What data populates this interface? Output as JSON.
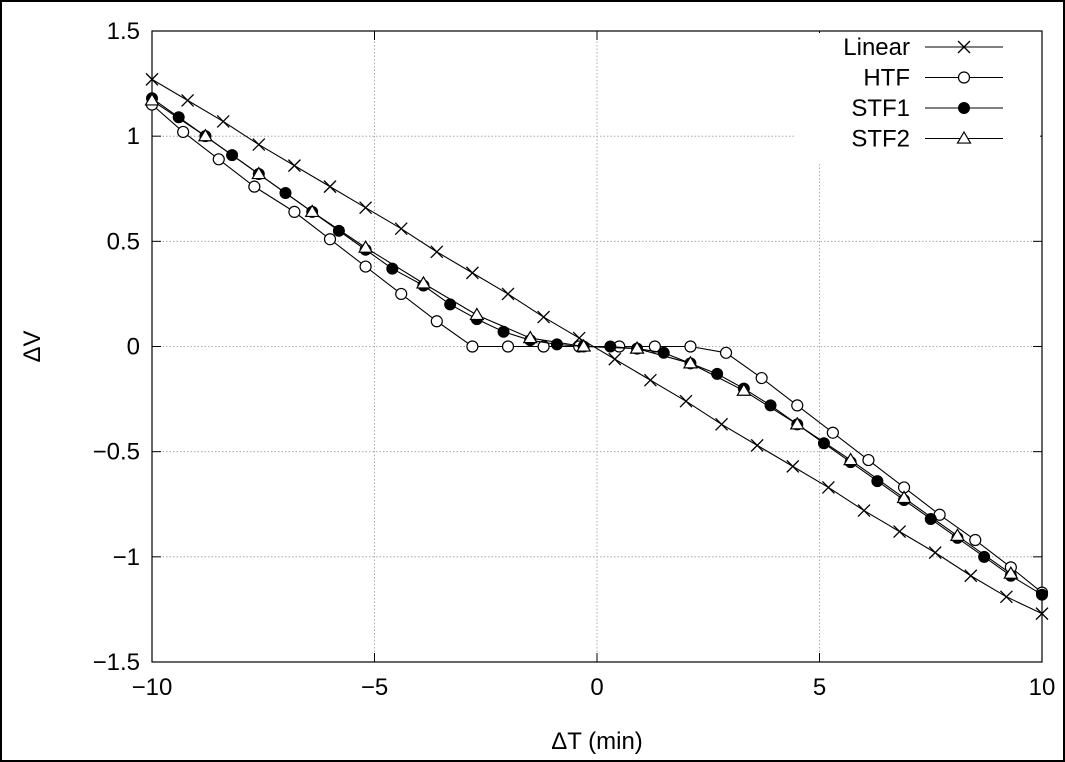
{
  "chart_data": {
    "type": "line",
    "xlabel": "ΔT (min)",
    "ylabel": "ΔV",
    "xlim": [
      -10,
      10
    ],
    "ylim": [
      -1.5,
      1.5
    ],
    "x_ticks": [
      -10,
      -5,
      0,
      5,
      10
    ],
    "x_tick_labels": [
      "−10",
      "−5",
      "0",
      "5",
      "10"
    ],
    "y_ticks": [
      -1.5,
      -1,
      -0.5,
      0,
      0.5,
      1,
      1.5
    ],
    "y_tick_labels": [
      "−1.5",
      "−1",
      "−0.5",
      "0",
      "0.5",
      "1",
      "1.5"
    ],
    "grid": true,
    "legend_position": "top-right",
    "series": [
      {
        "name": "Linear",
        "marker": "x",
        "x": [
          -10,
          -9.2,
          -8.4,
          -7.6,
          -6.8,
          -6.0,
          -5.2,
          -4.4,
          -3.6,
          -2.8,
          -2.0,
          -1.2,
          -0.4,
          0.4,
          1.2,
          2.0,
          2.8,
          3.6,
          4.4,
          5.2,
          6.0,
          6.8,
          7.6,
          8.4,
          9.2,
          10
        ],
        "y": [
          1.27,
          1.17,
          1.07,
          0.96,
          0.86,
          0.76,
          0.66,
          0.56,
          0.45,
          0.35,
          0.25,
          0.14,
          0.04,
          -0.06,
          -0.16,
          -0.26,
          -0.37,
          -0.47,
          -0.57,
          -0.67,
          -0.78,
          -0.88,
          -0.98,
          -1.09,
          -1.19,
          -1.27
        ]
      },
      {
        "name": "HTF",
        "marker": "circle-open",
        "x": [
          -10,
          -9.3,
          -8.5,
          -7.7,
          -6.8,
          -6.0,
          -5.2,
          -4.4,
          -3.6,
          -2.8,
          -2.0,
          -1.2,
          -0.4,
          0.5,
          1.3,
          2.1,
          2.9,
          3.7,
          4.5,
          5.3,
          6.1,
          6.9,
          7.7,
          8.5,
          9.3,
          10
        ],
        "y": [
          1.15,
          1.02,
          0.89,
          0.76,
          0.64,
          0.51,
          0.38,
          0.25,
          0.12,
          0.0,
          0.0,
          0.0,
          0.0,
          0.0,
          0.0,
          0.0,
          -0.03,
          -0.15,
          -0.28,
          -0.41,
          -0.54,
          -0.67,
          -0.8,
          -0.92,
          -1.05,
          -1.17
        ]
      },
      {
        "name": "STF1",
        "marker": "circle-filled",
        "x": [
          -10,
          -9.4,
          -8.8,
          -8.2,
          -7.6,
          -7.0,
          -6.4,
          -5.8,
          -5.2,
          -4.6,
          -3.9,
          -3.3,
          -2.7,
          -2.1,
          -1.5,
          -0.9,
          -0.3,
          0.3,
          0.9,
          1.5,
          2.1,
          2.7,
          3.3,
          3.9,
          4.5,
          5.1,
          5.7,
          6.3,
          6.9,
          7.5,
          8.1,
          8.7,
          9.3,
          10
        ],
        "y": [
          1.18,
          1.09,
          1.0,
          0.91,
          0.82,
          0.73,
          0.64,
          0.55,
          0.46,
          0.37,
          0.29,
          0.2,
          0.13,
          0.07,
          0.03,
          0.01,
          0.0,
          0.0,
          -0.01,
          -0.03,
          -0.08,
          -0.13,
          -0.2,
          -0.28,
          -0.37,
          -0.46,
          -0.55,
          -0.64,
          -0.73,
          -0.82,
          -0.91,
          -1.0,
          -1.09,
          -1.18
        ]
      },
      {
        "name": "STF2",
        "marker": "triangle-open",
        "x": [
          -10,
          -8.8,
          -7.6,
          -6.4,
          -5.2,
          -3.9,
          -2.7,
          -1.5,
          -0.3,
          0.9,
          2.1,
          3.3,
          4.5,
          5.7,
          6.9,
          8.1,
          9.3
        ],
        "y": [
          1.17,
          1.0,
          0.82,
          0.64,
          0.47,
          0.3,
          0.15,
          0.04,
          0.0,
          -0.01,
          -0.08,
          -0.21,
          -0.37,
          -0.54,
          -0.72,
          -0.9,
          -1.08
        ]
      }
    ]
  }
}
